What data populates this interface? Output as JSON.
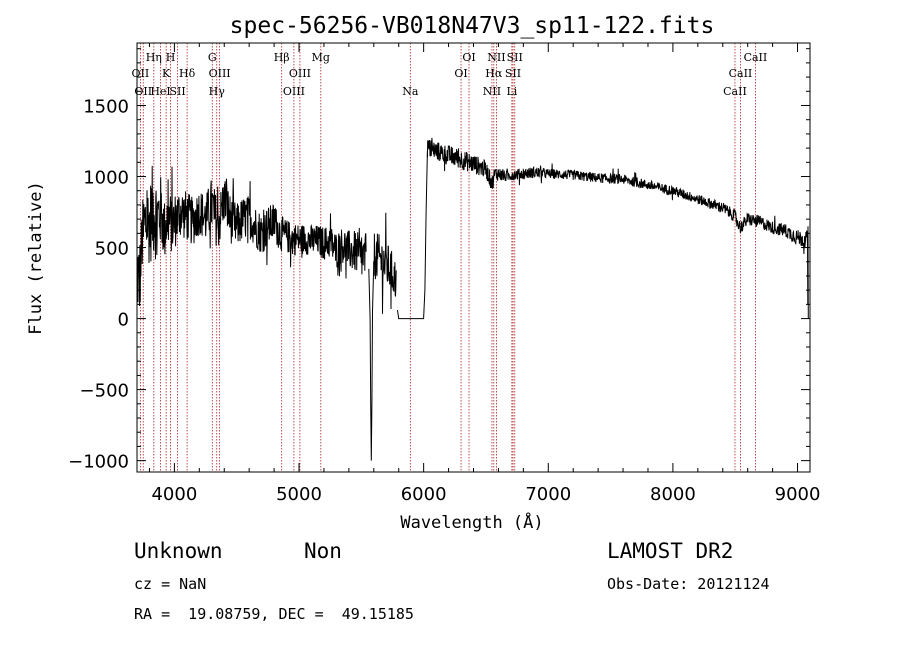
{
  "chart_data": {
    "type": "line",
    "title": "spec-56256-VB018N47V3_sp11-122.fits",
    "xlabel": "Wavelength (Å)",
    "ylabel": "Flux (relative)",
    "xlim": [
      3700,
      9100
    ],
    "ylim": [
      -1080,
      1940
    ],
    "xticks": [
      4000,
      5000,
      6000,
      7000,
      8000,
      9000
    ],
    "xtick_labels": [
      "4000",
      "5000",
      "6000",
      "7000",
      "8000",
      "9000"
    ],
    "yticks": [
      -1000,
      -500,
      0,
      500,
      1000,
      1500
    ],
    "ytick_labels": [
      "−1000",
      "−500",
      "0",
      "500",
      "1000",
      "1500"
    ],
    "grid": false,
    "line_color": "#000000",
    "marker_color": "#b22222",
    "lines": [
      {
        "wl": 3727,
        "label": "OII",
        "row": 2
      },
      {
        "wl": 3750,
        "label": "OII",
        "row": 3
      },
      {
        "wl": 3835,
        "label": "Hη",
        "row": 1
      },
      {
        "wl": 3889,
        "label": "HeI",
        "row": 3
      },
      {
        "wl": 3934,
        "label": "K",
        "row": 2
      },
      {
        "wl": 3969,
        "label": "H",
        "row": 1
      },
      {
        "wl": 4026,
        "label": "SII",
        "row": 3
      },
      {
        "wl": 4102,
        "label": "Hδ",
        "row": 2
      },
      {
        "wl": 4304,
        "label": "G",
        "row": 1
      },
      {
        "wl": 4340,
        "label": "Hγ",
        "row": 3
      },
      {
        "wl": 4363,
        "label": "OIII",
        "row": 2
      },
      {
        "wl": 4861,
        "label": "Hβ",
        "row": 1
      },
      {
        "wl": 4959,
        "label": "OIII",
        "row": 3
      },
      {
        "wl": 5007,
        "label": "OIII",
        "row": 2
      },
      {
        "wl": 5175,
        "label": "Mg",
        "row": 1
      },
      {
        "wl": 5893,
        "label": "Na",
        "row": 3
      },
      {
        "wl": 6300,
        "label": "OI",
        "row": 2
      },
      {
        "wl": 6364,
        "label": "OI",
        "row": 1
      },
      {
        "wl": 6548,
        "label": "NII",
        "row": 3
      },
      {
        "wl": 6563,
        "label": "Hα",
        "row": 2
      },
      {
        "wl": 6584,
        "label": "NII",
        "row": 1
      },
      {
        "wl": 6708,
        "label": "Li",
        "row": 3
      },
      {
        "wl": 6717,
        "label": "SII",
        "row": 2
      },
      {
        "wl": 6731,
        "label": "SII",
        "row": 1
      },
      {
        "wl": 8498,
        "label": "CaII",
        "row": 3
      },
      {
        "wl": 8542,
        "label": "CaII",
        "row": 2
      },
      {
        "wl": 8662,
        "label": "CaII",
        "row": 1
      }
    ],
    "spectrum_segments": [
      {
        "x": [
          3700,
          3720,
          3740,
          3760,
          3780,
          3800,
          3830,
          3860,
          3890,
          3920,
          3950,
          3980,
          4010,
          4050,
          4100,
          4150,
          4200,
          4250,
          4300,
          4350,
          4400,
          4450,
          4500,
          4550,
          4600,
          4650,
          4700,
          4750,
          4800,
          4850,
          4900,
          4950,
          5000,
          5050,
          5100,
          5150,
          5200,
          5250,
          5300,
          5350,
          5400,
          5450,
          5500,
          5540
        ],
        "y": [
          350,
          250,
          550,
          650,
          700,
          650,
          780,
          700,
          760,
          620,
          720,
          650,
          700,
          750,
          720,
          680,
          760,
          700,
          800,
          650,
          850,
          700,
          650,
          700,
          720,
          650,
          600,
          650,
          680,
          600,
          580,
          560,
          560,
          560,
          550,
          550,
          530,
          540,
          480,
          520,
          480,
          470,
          430,
          420
        ],
        "jitter": [
          300,
          300,
          250,
          300,
          280,
          280,
          350,
          300,
          250,
          220,
          220,
          200,
          200,
          180,
          180,
          170,
          170,
          170,
          200,
          180,
          180,
          170,
          160,
          160,
          150,
          150,
          150,
          140,
          140,
          130,
          120,
          120,
          110,
          110,
          110,
          110,
          120,
          120,
          130,
          130,
          140,
          150,
          160,
          170
        ]
      },
      {
        "x": [
          5560,
          5570,
          5575,
          5580,
          5585,
          5590,
          5600
        ],
        "y": [
          350,
          0,
          -600,
          -1000,
          -600,
          50,
          400
        ],
        "jitter": [
          0,
          0,
          0,
          0,
          0,
          0,
          0
        ]
      },
      {
        "x": [
          5600,
          5650,
          5700,
          5750,
          5780
        ],
        "y": [
          450,
          420,
          380,
          320,
          260
        ],
        "jitter": [
          170,
          170,
          170,
          150,
          150
        ]
      },
      {
        "x": [
          5790,
          5800,
          6000,
          6010,
          6020,
          6030
        ],
        "y": [
          60,
          0,
          0,
          200,
          750,
          1180
        ],
        "jitter": [
          0,
          0,
          0,
          0,
          0,
          0
        ]
      },
      {
        "x": [
          6030,
          6100,
          6200,
          6300,
          6400,
          6500,
          6550,
          6570,
          6600,
          6650,
          6700,
          6800,
          6900,
          7000,
          7200,
          7400,
          7600,
          7800,
          8000,
          8200,
          8400,
          8500,
          8540,
          8600,
          8700,
          8800,
          8900,
          9000,
          9050,
          9080
        ],
        "y": [
          1200,
          1180,
          1150,
          1120,
          1090,
          1050,
          950,
          1020,
          1020,
          1000,
          1010,
          1020,
          1030,
          1020,
          1010,
          990,
          980,
          940,
          900,
          840,
          780,
          720,
          640,
          700,
          680,
          640,
          620,
          570,
          560,
          560
        ],
        "jitter": [
          70,
          70,
          70,
          70,
          70,
          60,
          60,
          50,
          50,
          40,
          40,
          40,
          40,
          35,
          35,
          35,
          35,
          35,
          35,
          35,
          40,
          45,
          45,
          45,
          45,
          45,
          50,
          55,
          60,
          60
        ]
      },
      {
        "x": [
          9080,
          9082,
          9084,
          9086
        ],
        "y": [
          560,
          100,
          650,
          0
        ],
        "jitter": [
          0,
          0,
          0,
          0
        ]
      }
    ]
  },
  "footer": {
    "object_class": "Unknown",
    "object_subclass": "Non",
    "survey": "LAMOST DR2",
    "cz": "cz = NaN",
    "obs_date": "Obs-Date: 20121124",
    "coords": "RA =  19.08759, DEC =  49.15185"
  }
}
